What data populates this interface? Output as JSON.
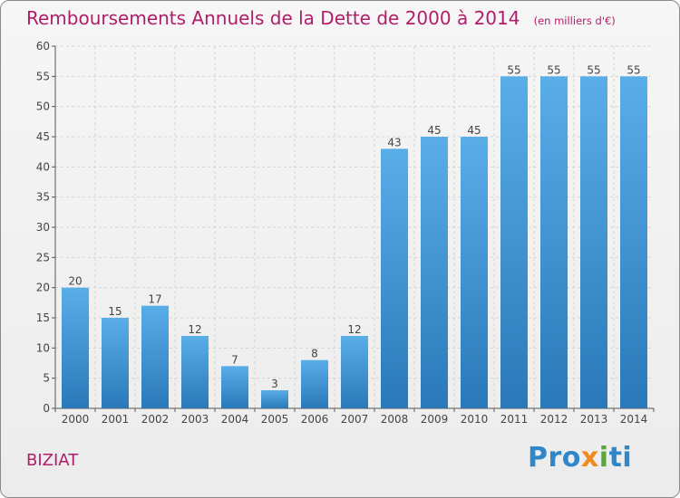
{
  "title": "Remboursements Annuels de la Dette de 2000 à 2014",
  "subtitle": "(en milliers d'€)",
  "place_label": "BIZIAT",
  "logo": {
    "text": "Proxiti",
    "parts": [
      "Pro",
      "x",
      "i",
      "ti"
    ]
  },
  "colors": {
    "accent": "#b01e6a",
    "bar_top": "#5aaee8",
    "bar_bottom": "#2a78b8",
    "grid": "#d4d4d4"
  },
  "chart_data": {
    "type": "bar",
    "categories": [
      "2000",
      "2001",
      "2002",
      "2003",
      "2004",
      "2005",
      "2006",
      "2007",
      "2008",
      "2009",
      "2010",
      "2011",
      "2012",
      "2013",
      "2014"
    ],
    "values": [
      20,
      15,
      17,
      12,
      7,
      3,
      8,
      12,
      43,
      45,
      45,
      55,
      55,
      55,
      55
    ],
    "ylim": [
      0,
      60
    ],
    "yticks": [
      0,
      5,
      10,
      15,
      20,
      25,
      30,
      35,
      40,
      45,
      50,
      55,
      60
    ],
    "grid": true,
    "data_labels": true
  }
}
